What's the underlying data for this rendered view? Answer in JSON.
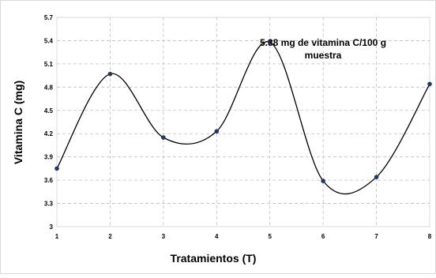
{
  "chart_data": {
    "type": "line",
    "title": "",
    "xlabel": "Tratamientos (T)",
    "ylabel": "Vitamina C (mg)",
    "x": [
      1,
      2,
      3,
      4,
      5,
      6,
      7,
      8
    ],
    "xlim": [
      1,
      8
    ],
    "ylim": [
      3,
      5.7
    ],
    "x_ticks": [
      "1",
      "2",
      "3",
      "4",
      "5",
      "6",
      "7",
      "8"
    ],
    "y_ticks": [
      "3",
      "3.3",
      "3.6",
      "3.9",
      "4.2",
      "4.5",
      "4.8",
      "5.1",
      "5.4",
      "5.7"
    ],
    "series": [
      {
        "values": [
          3.75,
          4.97,
          4.15,
          4.23,
          5.38,
          3.59,
          3.64,
          4.84
        ],
        "color": "#000000",
        "marker_color": "#1f3864",
        "smooth": true
      }
    ],
    "annotation": {
      "lines": [
        "5.38 mg de vitamina C/100 g",
        "muestra"
      ],
      "x": 5
    },
    "grid": true,
    "grid_style": "dashed",
    "grid_color": "#bfbfbf",
    "legend": "none"
  }
}
